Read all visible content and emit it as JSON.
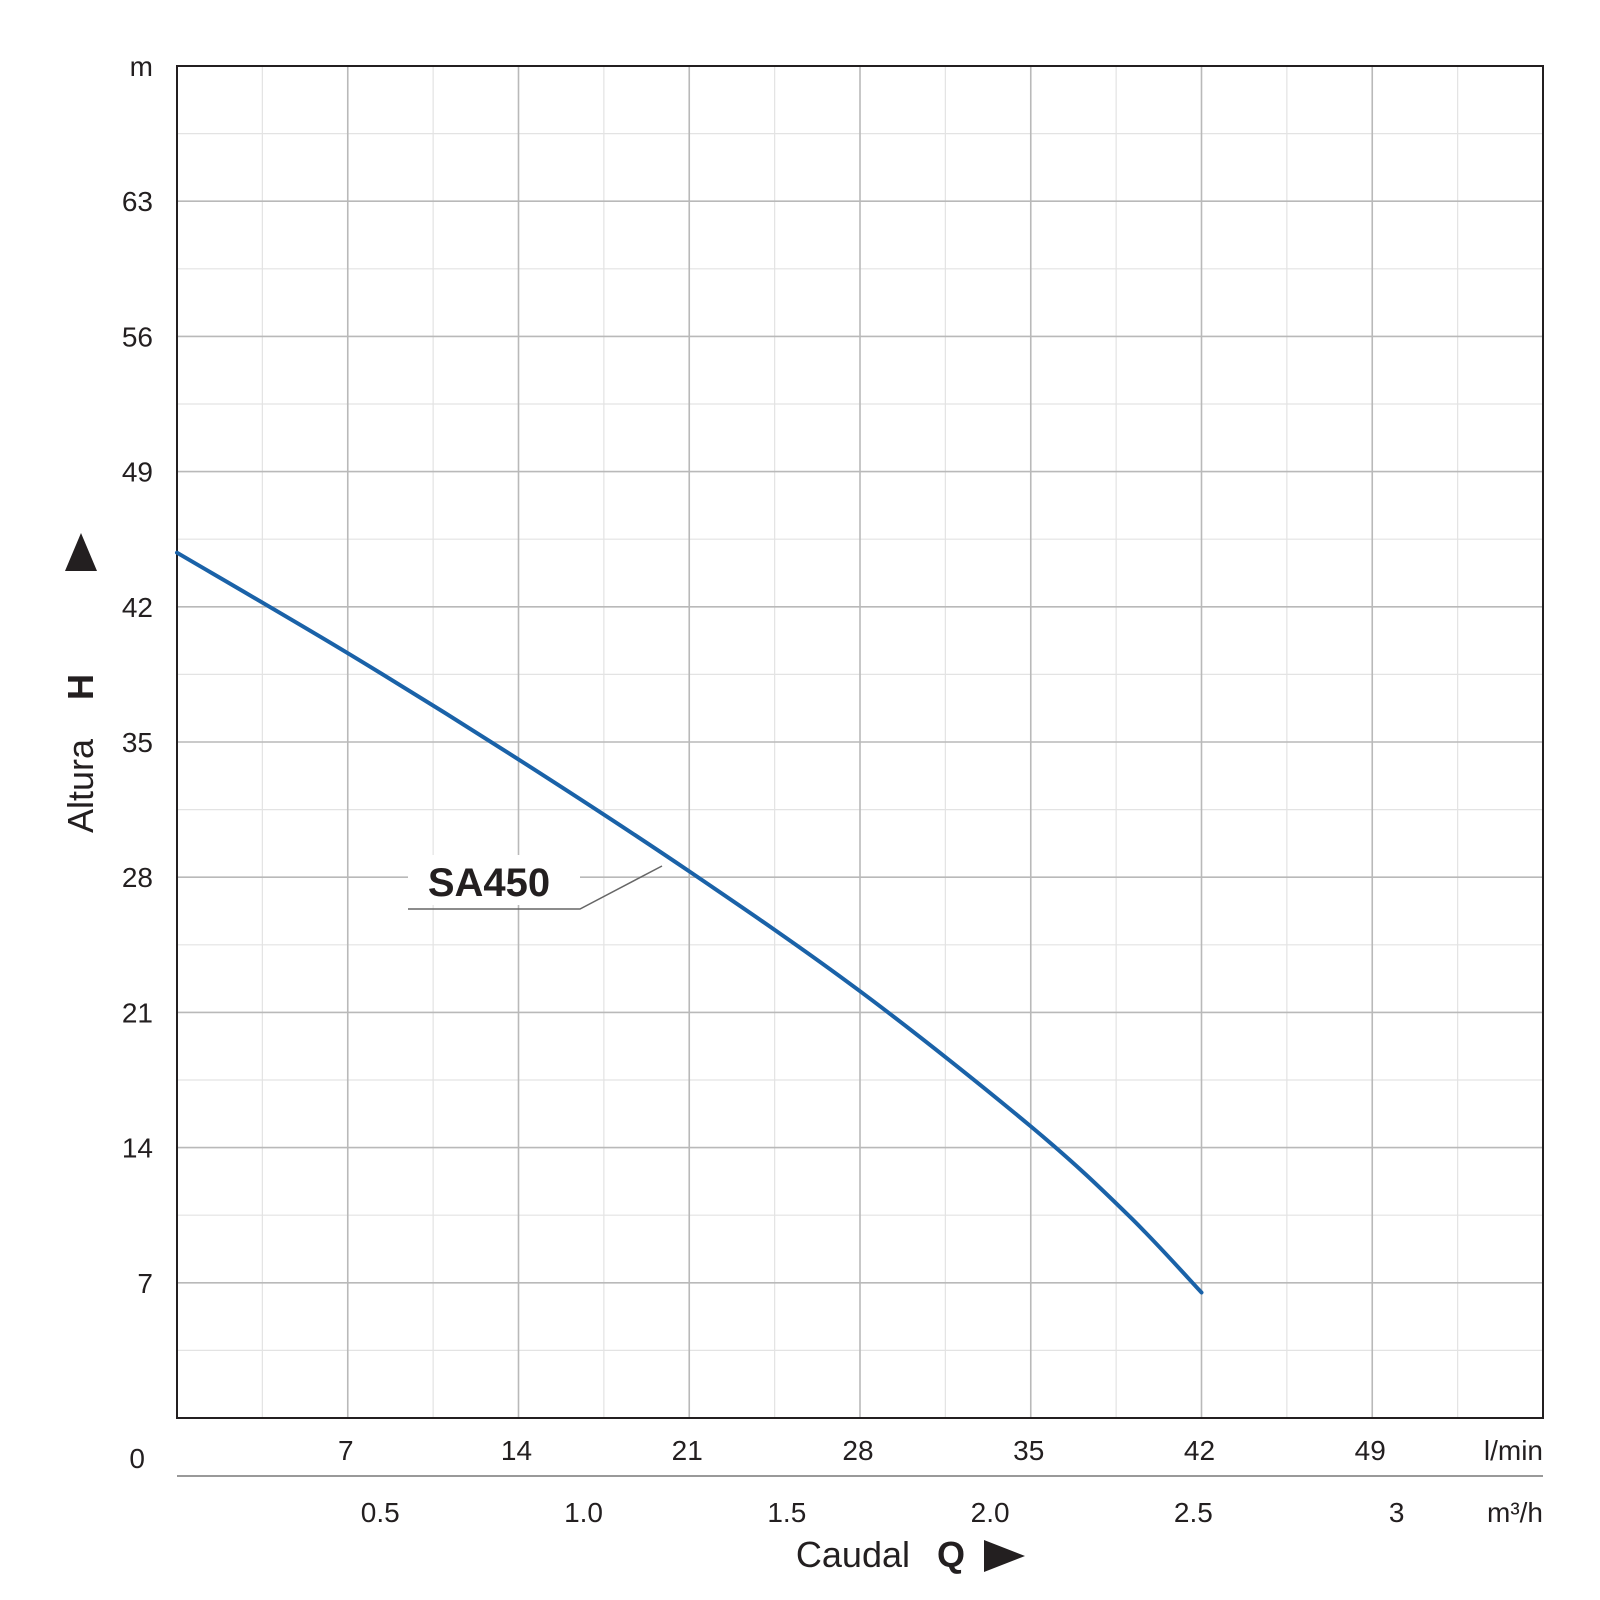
{
  "chart_data": {
    "type": "line",
    "title": "",
    "x_unit_primary": "l/min",
    "x_unit_secondary": "m³/h",
    "y_unit": "m",
    "xlabel_word": "Caudal",
    "xlabel_symbol": "Q",
    "ylabel_word": "Altura",
    "ylabel_symbol": "H",
    "origin_label": "0",
    "xlim": [
      0,
      56
    ],
    "ylim": [
      0,
      70
    ],
    "x_ticks": [
      "7",
      "14",
      "21",
      "28",
      "35",
      "42",
      "49"
    ],
    "x_secondary_ticks": [
      {
        "label": "0.5",
        "value": 0.5
      },
      {
        "label": "1.0",
        "value": 1.0
      },
      {
        "label": "1.5",
        "value": 1.5
      },
      {
        "label": "2.0",
        "value": 2.0
      },
      {
        "label": "2.5",
        "value": 2.5
      },
      {
        "label": "3",
        "value": 3
      }
    ],
    "y_ticks": [
      "7",
      "14",
      "21",
      "28",
      "35",
      "42",
      "49",
      "56",
      "63"
    ],
    "grid": true,
    "series": [
      {
        "name": "SA450",
        "color": "#1a62a8",
        "x": [
          0,
          7,
          14,
          21,
          28,
          35,
          39,
          42
        ],
        "y": [
          44.8,
          39.6,
          34.1,
          28.3,
          22.1,
          15.1,
          10.5,
          6.5
        ]
      }
    ]
  }
}
